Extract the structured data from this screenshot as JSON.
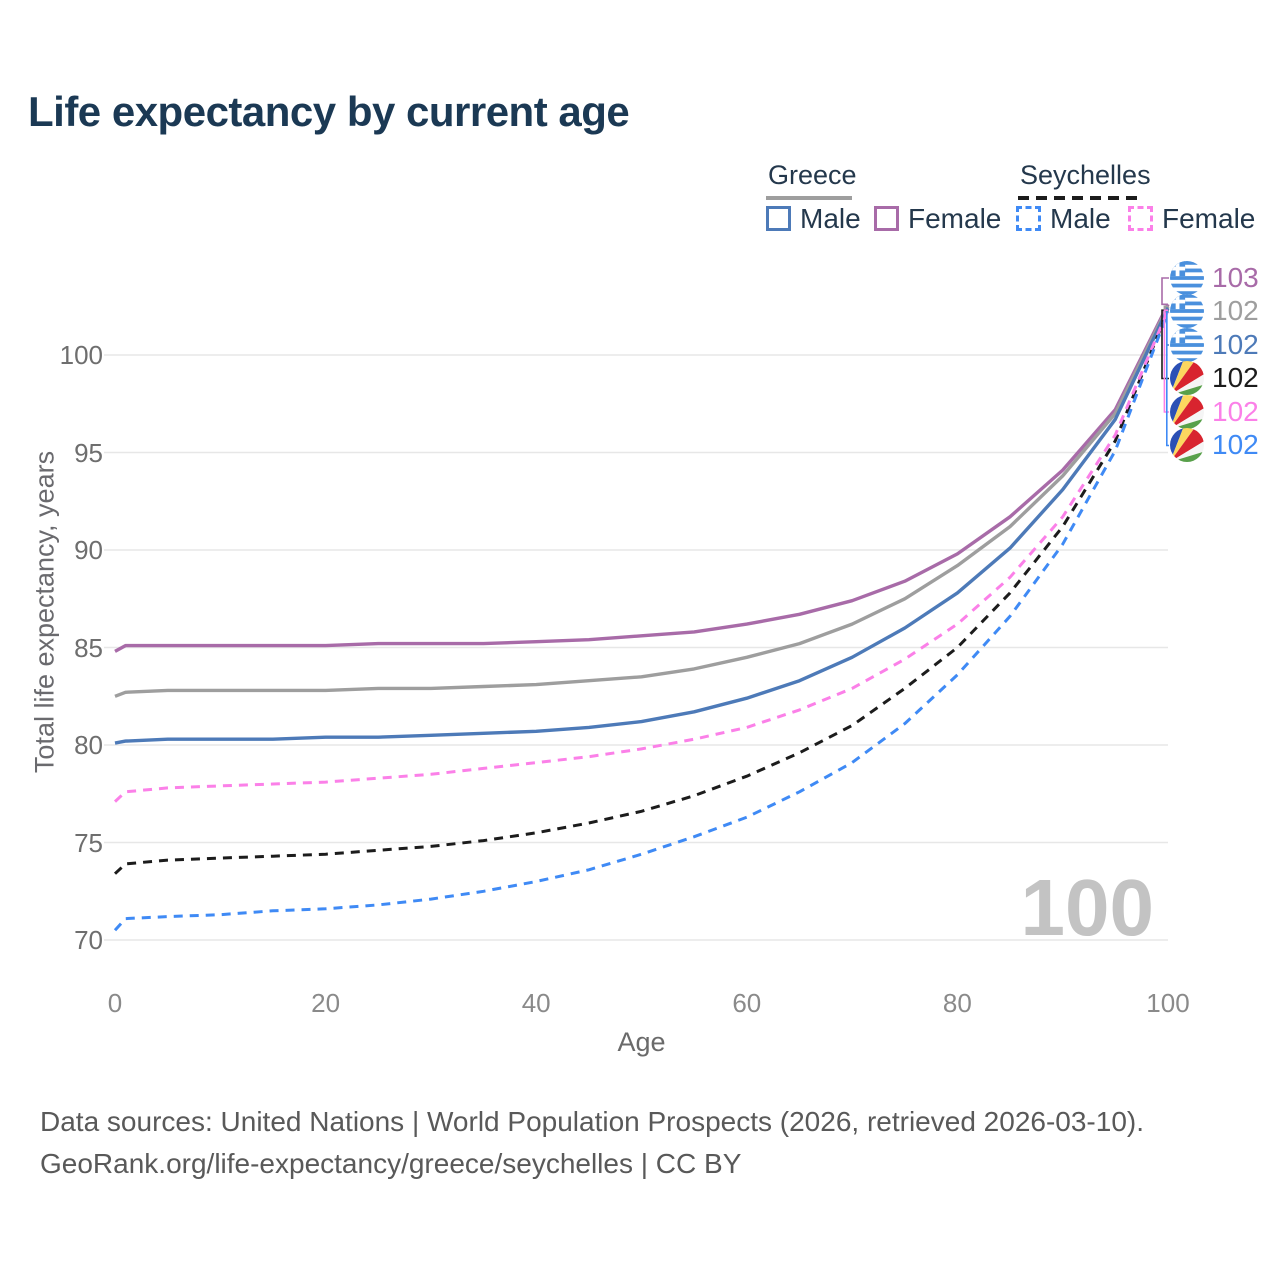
{
  "title": "Life expectancy by current age",
  "legend": {
    "greece": {
      "label": "Greece",
      "male": "Male",
      "female": "Female"
    },
    "seychelles": {
      "label": "Seychelles",
      "male": "Male",
      "female": "Female"
    }
  },
  "colors": {
    "greece_male": "#4d7ab8",
    "greece_female": "#a86ba8",
    "greece_all": "#9e9e9e",
    "seychelles_male": "#3f8af5",
    "seychelles_female": "#fb80e8",
    "seychelles_all": "#1c1c1c",
    "title_text": "#1b3954",
    "grid": "#e7e7e7",
    "watermark": "#c3c3c3"
  },
  "axes": {
    "x_label": "Age",
    "y_label": "Total life expectancy, years"
  },
  "chart_data": {
    "type": "line",
    "title": "Life expectancy by current age",
    "xlabel": "Age",
    "ylabel": "Total life expectancy, years",
    "xlim": [
      0,
      100
    ],
    "ylim": [
      70,
      103
    ],
    "xticks": [
      0,
      20,
      40,
      60,
      80,
      100
    ],
    "yticks": [
      70,
      75,
      80,
      85,
      90,
      95,
      100
    ],
    "grid": "horizontal",
    "legend_position": "top-right",
    "x": [
      0,
      1,
      5,
      10,
      15,
      20,
      25,
      30,
      35,
      40,
      45,
      50,
      55,
      60,
      65,
      70,
      75,
      80,
      85,
      90,
      95,
      100
    ],
    "series": [
      {
        "name": "Greece Female",
        "country": "Greece",
        "sex": "Female",
        "style": "solid",
        "color": "#a86ba8",
        "end_label": 103,
        "values": [
          84.8,
          85.1,
          85.1,
          85.1,
          85.1,
          85.1,
          85.2,
          85.2,
          85.2,
          85.3,
          85.4,
          85.6,
          85.8,
          86.2,
          86.7,
          87.4,
          88.4,
          89.8,
          91.7,
          94.1,
          97.2,
          102.6
        ]
      },
      {
        "name": "Greece Both sexes",
        "country": "Greece",
        "sex": "Both",
        "style": "solid",
        "color": "#9e9e9e",
        "end_label": 102,
        "values": [
          82.5,
          82.7,
          82.8,
          82.8,
          82.8,
          82.8,
          82.9,
          82.9,
          83.0,
          83.1,
          83.3,
          83.5,
          83.9,
          84.5,
          85.2,
          86.2,
          87.5,
          89.2,
          91.2,
          93.8,
          97.0,
          102.5
        ]
      },
      {
        "name": "Greece Male",
        "country": "Greece",
        "sex": "Male",
        "style": "solid",
        "color": "#4d7ab8",
        "end_label": 102,
        "values": [
          80.1,
          80.2,
          80.3,
          80.3,
          80.3,
          80.4,
          80.4,
          80.5,
          80.6,
          80.7,
          80.9,
          81.2,
          81.7,
          82.4,
          83.3,
          84.5,
          86.0,
          87.8,
          90.1,
          93.1,
          96.7,
          102.4
        ]
      },
      {
        "name": "Seychelles Both sexes",
        "country": "Seychelles",
        "sex": "Both",
        "style": "dashed",
        "color": "#1c1c1c",
        "end_label": 102,
        "values": [
          73.4,
          73.9,
          74.1,
          74.2,
          74.3,
          74.4,
          74.6,
          74.8,
          75.1,
          75.5,
          76.0,
          76.6,
          77.4,
          78.4,
          79.6,
          81.0,
          82.9,
          85.0,
          87.8,
          91.2,
          95.6,
          102.3
        ]
      },
      {
        "name": "Seychelles Female",
        "country": "Seychelles",
        "sex": "Female",
        "style": "dashed",
        "color": "#fb80e8",
        "end_label": 102,
        "values": [
          77.1,
          77.6,
          77.8,
          77.9,
          78.0,
          78.1,
          78.3,
          78.5,
          78.8,
          79.1,
          79.4,
          79.8,
          80.3,
          80.9,
          81.8,
          82.9,
          84.4,
          86.2,
          88.6,
          91.7,
          95.9,
          102.3
        ]
      },
      {
        "name": "Seychelles Male",
        "country": "Seychelles",
        "sex": "Male",
        "style": "dashed",
        "color": "#3f8af5",
        "end_label": 102,
        "values": [
          70.5,
          71.1,
          71.2,
          71.3,
          71.5,
          71.6,
          71.8,
          72.1,
          72.5,
          73.0,
          73.6,
          74.4,
          75.3,
          76.3,
          77.6,
          79.1,
          81.1,
          83.6,
          86.6,
          90.3,
          95.1,
          102.2
        ]
      }
    ]
  },
  "end_labels": [
    {
      "flag": "greece",
      "icon": "greece-flag-icon",
      "value": "103",
      "color": "#a86ba8"
    },
    {
      "flag": "greece",
      "icon": "greece-flag-icon",
      "value": "102",
      "color": "#9e9e9e"
    },
    {
      "flag": "greece",
      "icon": "greece-flag-icon",
      "value": "102",
      "color": "#4d7ab8"
    },
    {
      "flag": "seychelles",
      "icon": "seychelles-flag-icon",
      "value": "102",
      "color": "#1c1c1c"
    },
    {
      "flag": "seychelles",
      "icon": "seychelles-flag-icon",
      "value": "102",
      "color": "#fb80e8"
    },
    {
      "flag": "seychelles",
      "icon": "seychelles-flag-icon",
      "value": "102",
      "color": "#3f8af5"
    }
  ],
  "watermark": "100",
  "footer": {
    "line1": "Data sources: United Nations | World Population Prospects (2026, retrieved 2026-03-10).",
    "line2": "GeoRank.org/life-expectancy/greece/seychelles | CC BY"
  }
}
